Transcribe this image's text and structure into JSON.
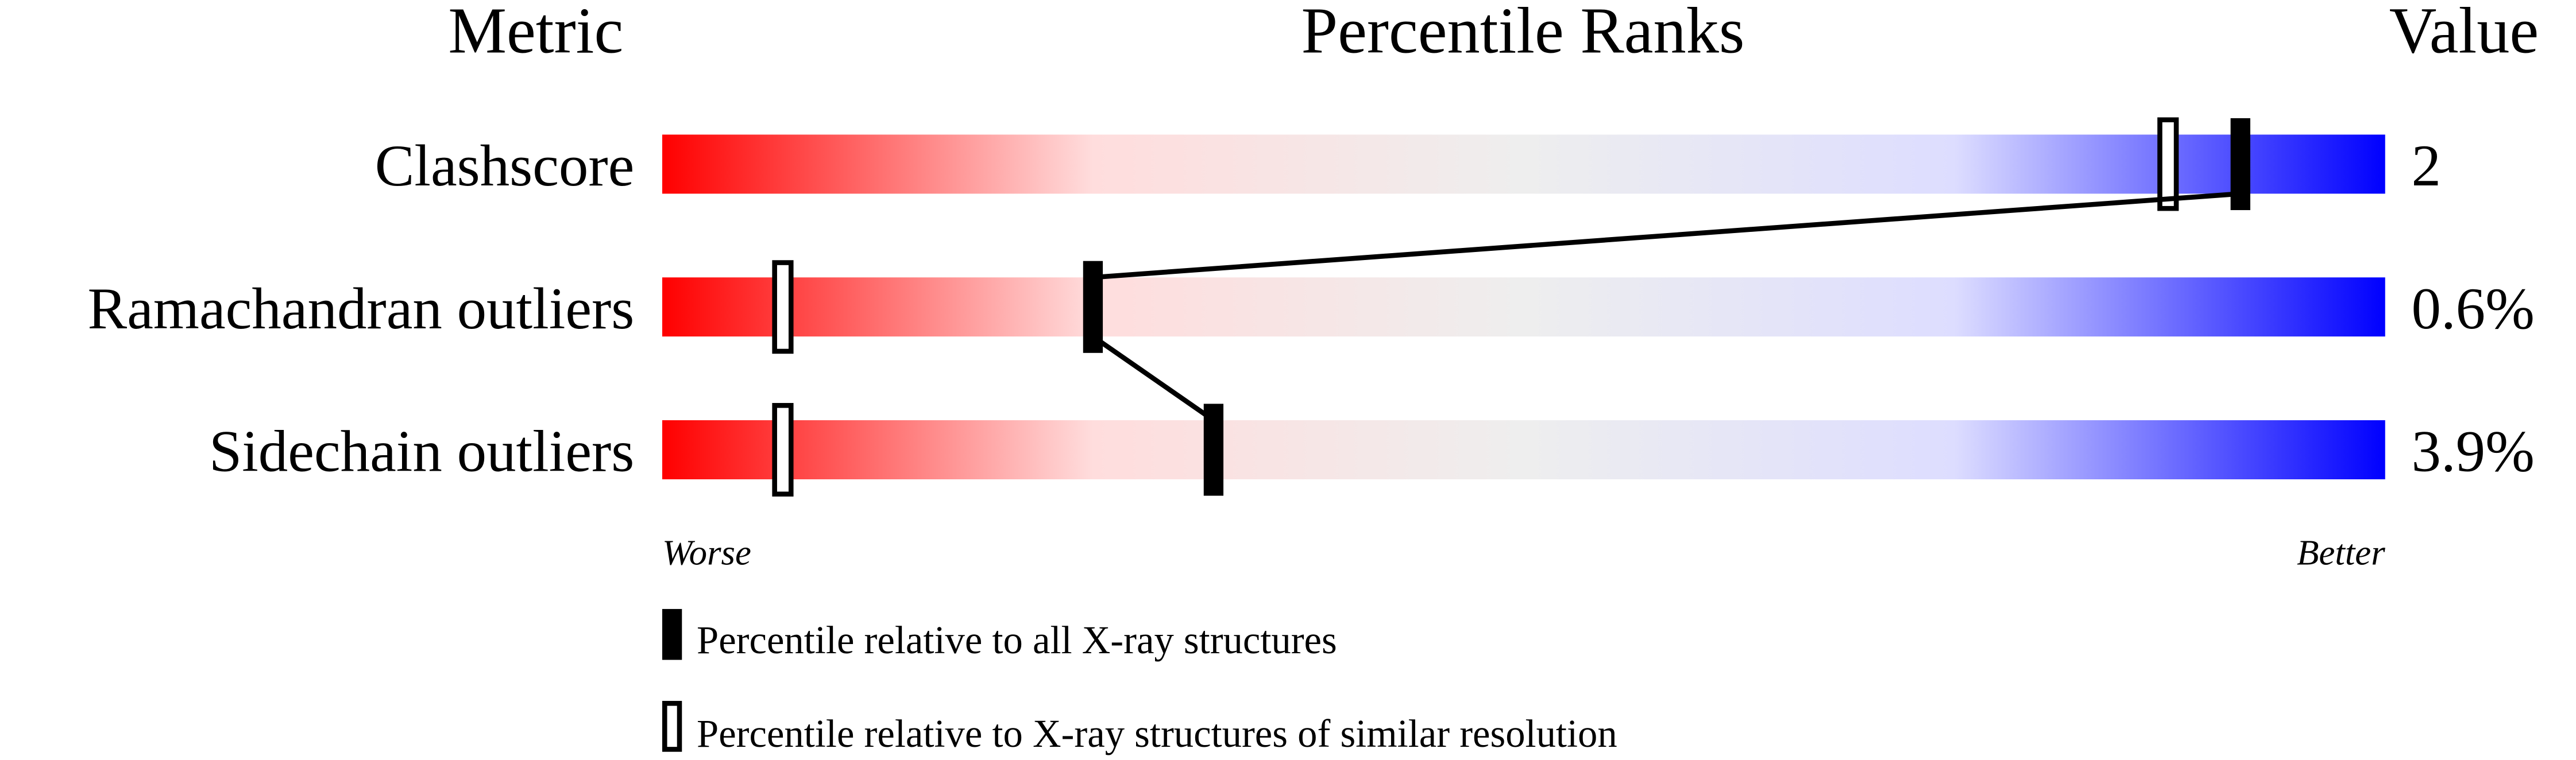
{
  "chart_data": {
    "type": "bar",
    "headers": {
      "metric": "Metric",
      "ranks": "Percentile Ranks",
      "value": "Value"
    },
    "categories": [
      "Clashscore",
      "Ramachandran outliers",
      "Sidechain outliers"
    ],
    "values": [
      "2",
      "0.6%",
      "3.9%"
    ],
    "series": [
      {
        "name": "Percentile relative to all X-ray structures",
        "marker": "filled",
        "values": [
          91.6,
          25,
          32
        ]
      },
      {
        "name": "Percentile relative to X-ray structures of similar resolution",
        "marker": "hollow",
        "values": [
          87.4,
          7,
          7
        ]
      }
    ],
    "xlim": [
      0,
      100
    ],
    "scale_labels": {
      "low": "Worse",
      "high": "Better"
    },
    "gradient_colors": [
      "#ff0000",
      "#ffdddd",
      "#eeeeee",
      "#ddddff",
      "#0000ff"
    ]
  }
}
